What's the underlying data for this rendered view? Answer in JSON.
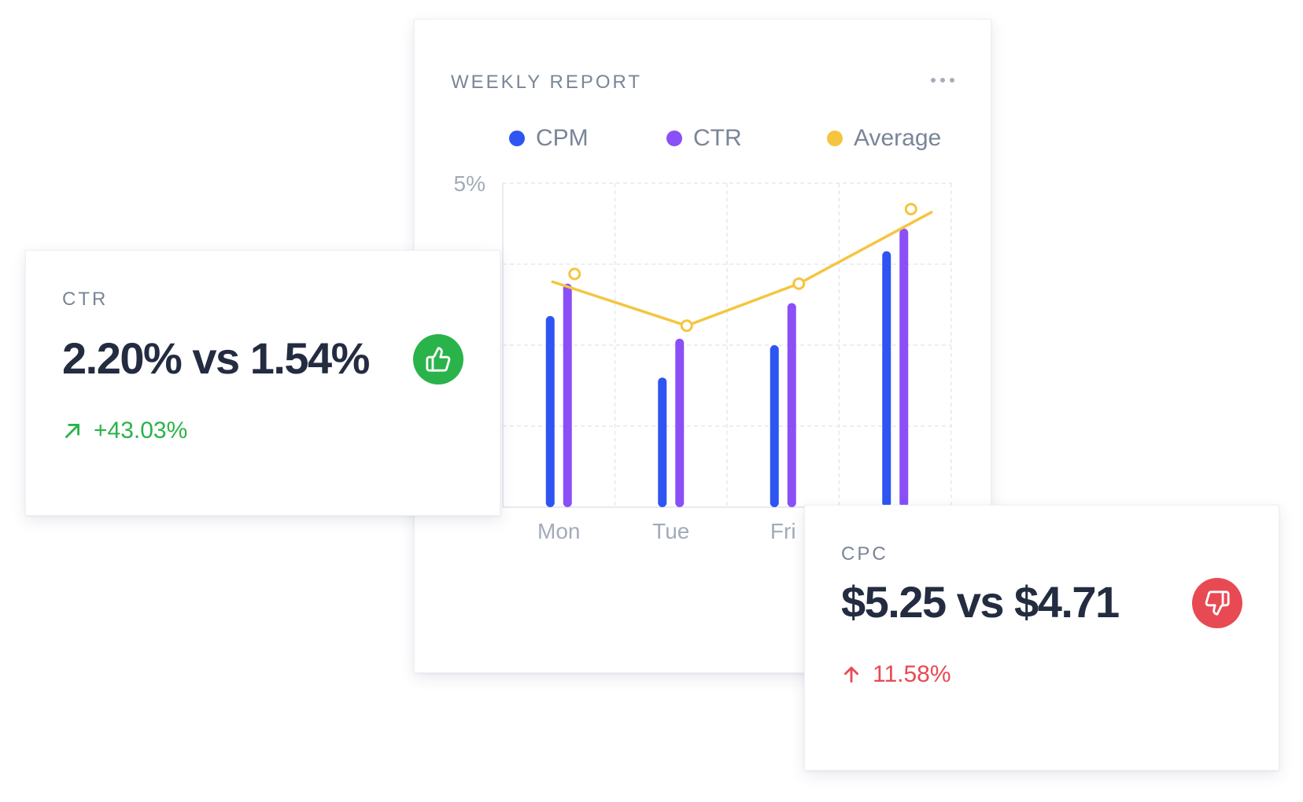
{
  "report": {
    "title": "WEEKLY REPORT",
    "menu_icon": "more-horizontal-icon"
  },
  "chart_data": {
    "type": "bar",
    "categories": [
      "Mon",
      "Tue",
      "Fri",
      ""
    ],
    "y_tick_label": "5%",
    "ylim": [
      0,
      5
    ],
    "grid": true,
    "legend_position": "top",
    "series": [
      {
        "name": "CPM",
        "type": "bar",
        "color": "#2e54f2",
        "values": [
          2.95,
          2.0,
          2.5,
          3.95
        ]
      },
      {
        "name": "CTR",
        "type": "bar",
        "color": "#8a4ff7",
        "values": [
          3.45,
          2.6,
          3.15,
          4.3
        ]
      },
      {
        "name": "Average",
        "type": "line",
        "color": "#f5c541",
        "values": [
          3.6,
          2.8,
          3.45,
          4.6
        ]
      }
    ]
  },
  "ctr_card": {
    "label": "CTR",
    "value": "2.20% vs 1.54%",
    "change": "+43.03%",
    "change_icon": "arrow-up-right-icon",
    "change_color": "#2ab34a",
    "badge_icon": "thumbs-up-icon",
    "badge_color": "#2ab34a"
  },
  "cpc_card": {
    "label": "CPC",
    "value": "$5.25 vs $4.71",
    "change": "11.58%",
    "change_icon": "arrow-up-icon",
    "change_color": "#e84a53",
    "badge_icon": "thumbs-down-icon",
    "badge_color": "#e84a53"
  }
}
